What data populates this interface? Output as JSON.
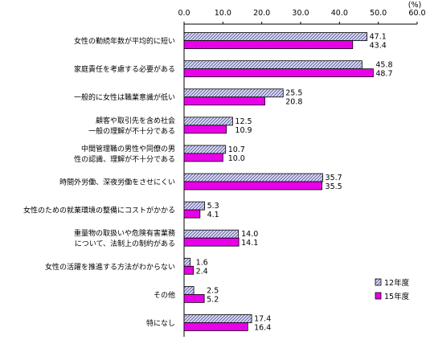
{
  "chart_data": {
    "type": "bar",
    "orientation": "horizontal",
    "unit_label": "(%)",
    "xlim": [
      0,
      60
    ],
    "xticks": [
      "0.0",
      "10.0",
      "20.0",
      "30.0",
      "40.0",
      "50.0",
      "60.0"
    ],
    "grid": false,
    "legend_position": "bottom-right",
    "categories": [
      [
        "女性の勤続年数が平均的に短い"
      ],
      [
        "家庭責任を考慮する必要がある"
      ],
      [
        "一般的に女性は職業意識が低い"
      ],
      [
        "顧客や取引先を含め社会",
        "一般の理解が不十分である"
      ],
      [
        "中間管理職の男性や同僚の男",
        "性の認識、理解が不十分である"
      ],
      [
        "時間外労働、深夜労働をさせにくい"
      ],
      [
        "女性のための就業環境の整備にコストがかかる"
      ],
      [
        "重量物の取扱いや危険有害業務",
        "について、法制上の制約がある"
      ],
      [
        "女性の活躍を推進する方法がわからない"
      ],
      [
        "その他"
      ],
      [
        "特になし"
      ]
    ],
    "series": [
      {
        "name": "12年度",
        "fill": "#dcdcf0",
        "stroke": "#000000",
        "pattern": "diagonal-hatch",
        "values": [
          47.1,
          45.8,
          25.5,
          12.5,
          10.7,
          35.7,
          5.3,
          14.0,
          1.6,
          2.5,
          17.4
        ],
        "labels": [
          "47.1",
          "45.8",
          "25.5",
          "12.5",
          "10.7",
          "35.7",
          "5.3",
          "14.0",
          "1.6",
          "2.5",
          "17.4"
        ]
      },
      {
        "name": "15年度",
        "fill": "#e800e8",
        "stroke": "#000000",
        "pattern": "solid",
        "values": [
          43.4,
          48.7,
          20.8,
          10.9,
          10.0,
          35.5,
          4.1,
          14.1,
          2.4,
          5.2,
          16.4
        ],
        "labels": [
          "43.4",
          "48.7",
          "20.8",
          "10.9",
          "10.0",
          "35.5",
          "4.1",
          "14.1",
          "2.4",
          "5.2",
          "16.4"
        ]
      }
    ]
  }
}
